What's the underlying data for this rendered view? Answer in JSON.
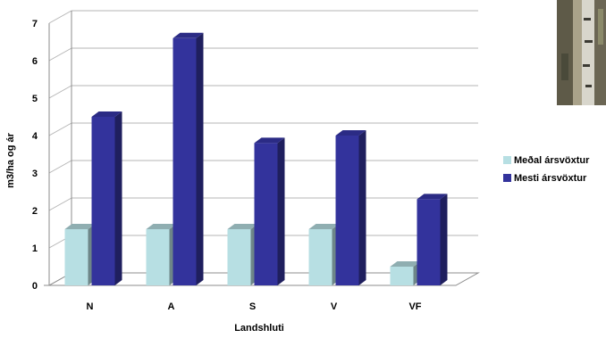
{
  "chart_data": {
    "type": "bar",
    "categories": [
      "N",
      "A",
      "S",
      "V",
      "VF"
    ],
    "series": [
      {
        "name": "Meðal ársvöxtur",
        "values": [
          1.5,
          1.5,
          1.5,
          1.5,
          0.5
        ],
        "color": "#b7dfe3"
      },
      {
        "name": "Mesti ársvöxtur",
        "values": [
          4.5,
          6.6,
          3.8,
          4.0,
          2.3
        ],
        "color": "#33339c"
      }
    ],
    "xlabel": "Landshluti",
    "ylabel": "m3/ha og ár",
    "ylim": [
      0,
      7
    ],
    "yticks": [
      "0",
      "1",
      "2",
      "3",
      "4",
      "5",
      "6",
      "7"
    ],
    "grid": true,
    "legend_position": "right"
  },
  "photo": {
    "icon": "tree-bark-photo"
  }
}
